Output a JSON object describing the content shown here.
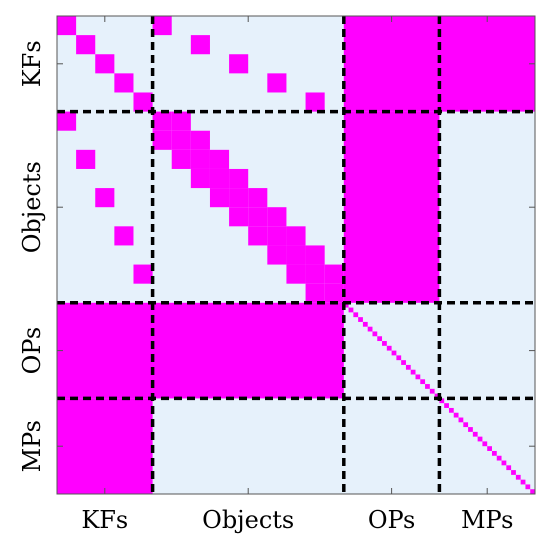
{
  "chart_data": {
    "type": "heatmap",
    "title": "",
    "xlabel": "",
    "ylabel": "",
    "grid": false,
    "colors": {
      "background": "#e6f1fb",
      "filled": "#ff00ff",
      "separator": "#000000"
    },
    "blocks": [
      {
        "label": "KFs",
        "size": 5
      },
      {
        "label": "Objects",
        "size": 10
      },
      {
        "label": "OPs",
        "size": 5
      },
      {
        "label": "MPs",
        "size": 5
      }
    ],
    "matrix_size": 25,
    "filled_cells": [
      [
        0,
        0
      ],
      [
        1,
        1
      ],
      [
        2,
        2
      ],
      [
        3,
        3
      ],
      [
        4,
        4
      ],
      [
        0,
        5
      ],
      [
        1,
        7
      ],
      [
        2,
        9
      ],
      [
        3,
        11
      ],
      [
        4,
        13
      ],
      [
        5,
        0
      ],
      [
        7,
        1
      ],
      [
        9,
        2
      ],
      [
        11,
        3
      ],
      [
        13,
        4
      ],
      [
        5,
        5
      ],
      [
        5,
        6
      ],
      [
        6,
        5
      ],
      [
        6,
        6
      ],
      [
        6,
        7
      ],
      [
        7,
        6
      ],
      [
        7,
        7
      ],
      [
        7,
        8
      ],
      [
        8,
        7
      ],
      [
        8,
        8
      ],
      [
        8,
        9
      ],
      [
        9,
        8
      ],
      [
        9,
        9
      ],
      [
        9,
        10
      ],
      [
        10,
        9
      ],
      [
        10,
        10
      ],
      [
        10,
        11
      ],
      [
        11,
        10
      ],
      [
        11,
        11
      ],
      [
        11,
        12
      ],
      [
        12,
        11
      ],
      [
        12,
        12
      ],
      [
        12,
        13
      ],
      [
        13,
        12
      ],
      [
        13,
        13
      ],
      [
        13,
        14
      ],
      [
        14,
        13
      ],
      [
        14,
        14
      ]
    ],
    "filled_rects": [
      {
        "rows": [
          0,
          4
        ],
        "cols": [
          15,
          24
        ]
      },
      {
        "rows": [
          5,
          14
        ],
        "cols": [
          15,
          19
        ]
      },
      {
        "rows": [
          15,
          19
        ],
        "cols": [
          0,
          14
        ]
      },
      {
        "rows": [
          20,
          24
        ],
        "cols": [
          0,
          4
        ]
      }
    ],
    "diagonal_blocks": [
      {
        "rows": [
          15,
          24
        ],
        "cols": [
          15,
          24
        ],
        "cells_per_unit": 4
      }
    ]
  }
}
